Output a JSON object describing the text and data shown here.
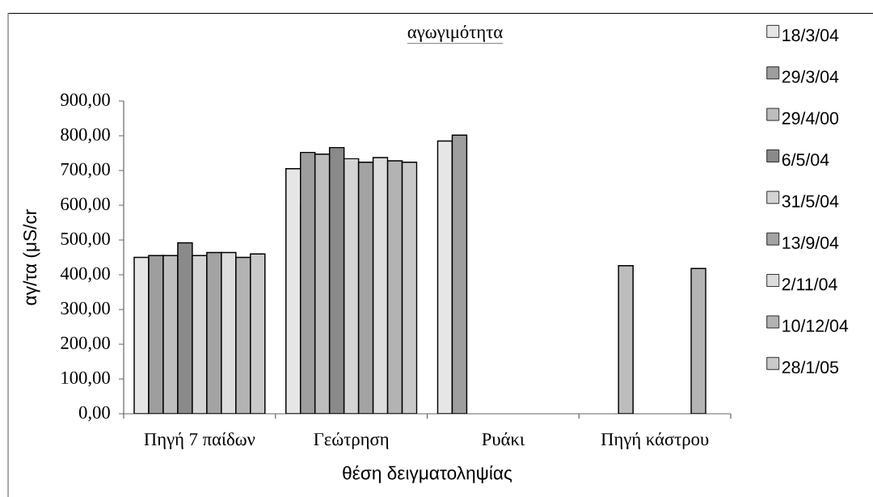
{
  "chart_data": {
    "type": "bar",
    "title": "αγωγιμότητα",
    "xlabel": "θέση δειγματοληψίας",
    "ylabel": "αγ/τα (μS/cr",
    "categories": [
      "Πηγή 7 παίδων",
      "Γεώτρηση",
      "Ρυάκι",
      "Πηγή κάστρου"
    ],
    "series": [
      {
        "name": "18/3/04",
        "color": "#e6e6e6",
        "values": [
          450,
          705,
          785,
          null
        ]
      },
      {
        "name": "29/3/04",
        "color": "#9e9e9e",
        "values": [
          455,
          752,
          802,
          null
        ]
      },
      {
        "name": "29/4/00",
        "color": "#bdbdbd",
        "values": [
          455,
          747,
          null,
          426
        ]
      },
      {
        "name": "6/5/04",
        "color": "#8a8a8a",
        "values": [
          492,
          766,
          null,
          null
        ]
      },
      {
        "name": "31/5/04",
        "color": "#d4d4d4",
        "values": [
          455,
          734,
          null,
          null
        ]
      },
      {
        "name": "13/9/04",
        "color": "#a3a3a3",
        "values": [
          464,
          724,
          null,
          null
        ]
      },
      {
        "name": "2/11/04",
        "color": "#dcdcdc",
        "values": [
          464,
          737,
          null,
          null
        ]
      },
      {
        "name": "10/12/04",
        "color": "#b3b3b3",
        "values": [
          450,
          728,
          null,
          418
        ]
      },
      {
        "name": "28/1/05",
        "color": "#c9c9c9",
        "values": [
          460,
          724,
          null,
          null
        ]
      }
    ],
    "ylim": [
      0,
      900
    ],
    "yticks": [
      {
        "value": 0,
        "label": "0,00"
      },
      {
        "value": 100,
        "label": "100,00"
      },
      {
        "value": 200,
        "label": "200,00"
      },
      {
        "value": 300,
        "label": "300,00"
      },
      {
        "value": 400,
        "label": "400,00"
      },
      {
        "value": 500,
        "label": "500,00"
      },
      {
        "value": 600,
        "label": "600,00"
      },
      {
        "value": 700,
        "label": "700,00"
      },
      {
        "value": 800,
        "label": "800,00"
      },
      {
        "value": 900,
        "label": "900,00"
      }
    ],
    "legend": "right"
  }
}
